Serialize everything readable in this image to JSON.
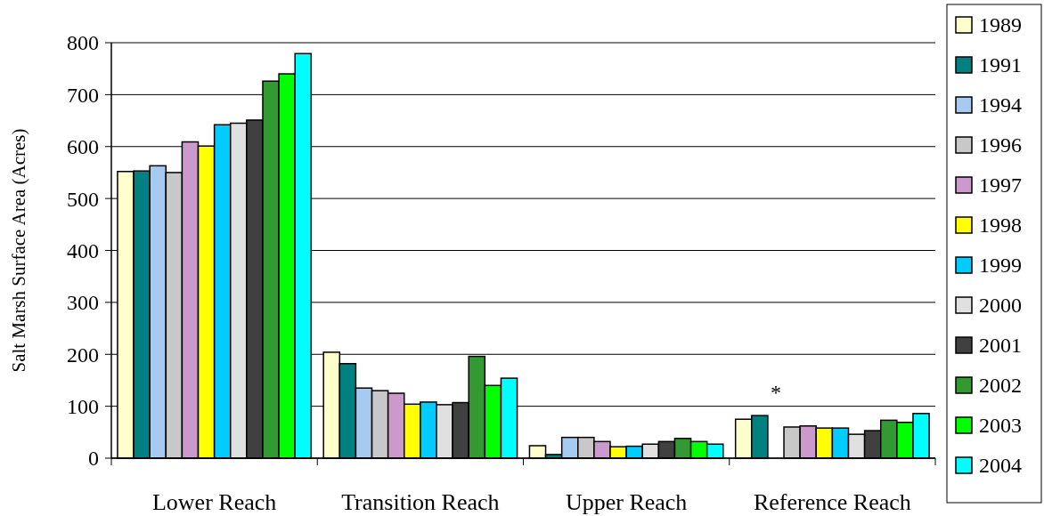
{
  "chart_data": {
    "type": "bar",
    "ylabel": "Salt Marsh Surface Area (Acres)",
    "categories": [
      "Lower Reach",
      "Transition Reach",
      "Upper Reach",
      "Reference Reach"
    ],
    "ylim": [
      0,
      800
    ],
    "yticks": [
      0,
      100,
      200,
      300,
      400,
      500,
      600,
      700,
      800
    ],
    "grid": "y",
    "legend": "right",
    "annotations": [
      "*"
    ],
    "series": [
      {
        "name": "1989",
        "color": "#ffffcc",
        "values": [
          552,
          204,
          24,
          75
        ]
      },
      {
        "name": "1991",
        "color": "#008080",
        "values": [
          553,
          182,
          7,
          82
        ]
      },
      {
        "name": "1994",
        "color": "#a6caf0",
        "values": [
          563,
          135,
          40,
          null
        ]
      },
      {
        "name": "1996",
        "color": "#c8c8c8",
        "values": [
          550,
          130,
          40,
          60
        ]
      },
      {
        "name": "1997",
        "color": "#cc99cc",
        "values": [
          609,
          125,
          32,
          62
        ]
      },
      {
        "name": "1998",
        "color": "#ffff00",
        "values": [
          601,
          104,
          22,
          58
        ]
      },
      {
        "name": "1999",
        "color": "#00ccff",
        "values": [
          642,
          108,
          23,
          58
        ]
      },
      {
        "name": "2000",
        "color": "#e0e0e0",
        "values": [
          645,
          103,
          27,
          46
        ]
      },
      {
        "name": "2001",
        "color": "#404040",
        "values": [
          651,
          107,
          32,
          53
        ]
      },
      {
        "name": "2002",
        "color": "#339933",
        "values": [
          726,
          196,
          38,
          73
        ]
      },
      {
        "name": "2003",
        "color": "#00ff00",
        "values": [
          740,
          140,
          32,
          69
        ]
      },
      {
        "name": "2004",
        "color": "#00ffff",
        "values": [
          779,
          154,
          27,
          86
        ]
      }
    ]
  }
}
